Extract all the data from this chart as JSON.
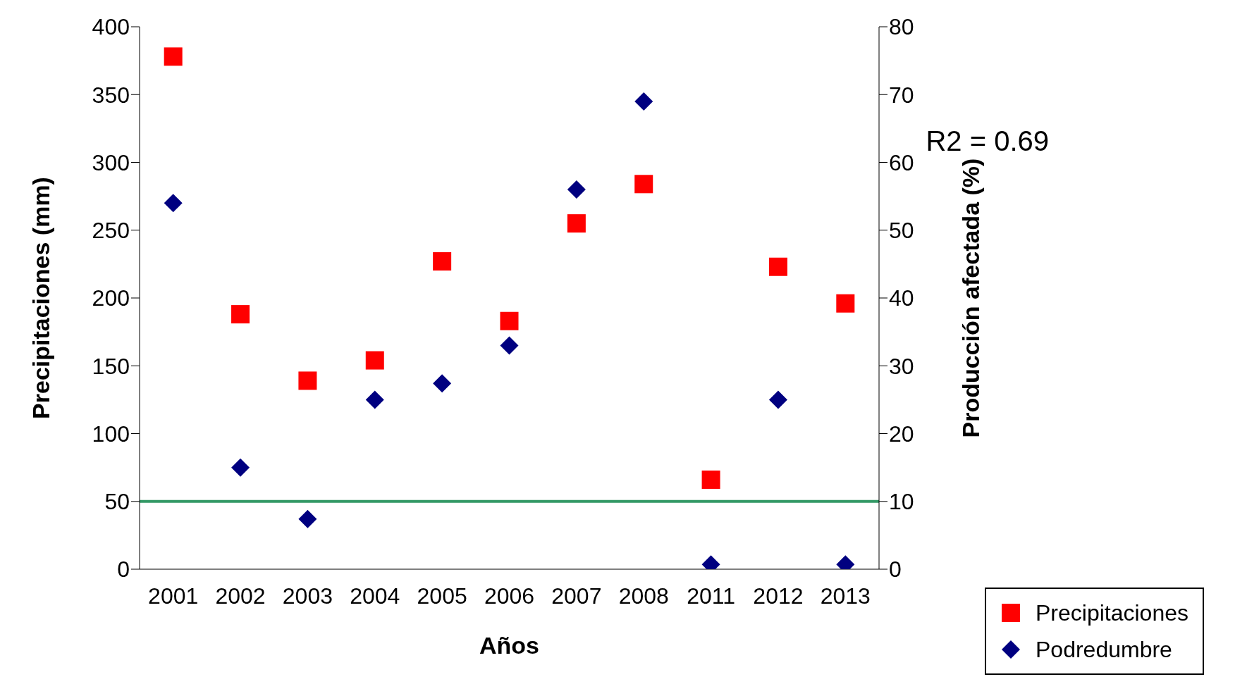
{
  "chart_data": {
    "type": "scatter",
    "xlabel": "Años",
    "ylabel": "Precipitaciones (mm)",
    "y2label": "Producción afectada (%)",
    "categories": [
      "2001",
      "2002",
      "2003",
      "2004",
      "2005",
      "2006",
      "2007",
      "2008",
      "2011",
      "2012",
      "2013"
    ],
    "series": [
      {
        "name": "Precipitaciones",
        "color": "#ff0000",
        "marker": "square",
        "values": [
          378,
          188,
          139,
          154,
          227,
          183,
          255,
          284,
          66,
          223,
          196
        ]
      },
      {
        "name": "Podredumbre",
        "color": "#000080",
        "marker": "diamond",
        "axis": "y2",
        "values": [
          54,
          15,
          7.4,
          25,
          27.4,
          33,
          56,
          69,
          0.7,
          25,
          0.7
        ]
      }
    ],
    "ylim": [
      0,
      400
    ],
    "yticks": [
      0,
      50,
      100,
      150,
      200,
      250,
      300,
      350,
      400
    ],
    "y2lim": [
      0,
      80
    ],
    "y2ticks": [
      0,
      10,
      20,
      30,
      40,
      50,
      60,
      70,
      80
    ],
    "ref_lines": [
      {
        "axis": "y2",
        "value": 10,
        "color": "#339966"
      }
    ],
    "annotations": [
      "R2 = 0.69"
    ],
    "grid": false,
    "legend": "bottom right"
  }
}
